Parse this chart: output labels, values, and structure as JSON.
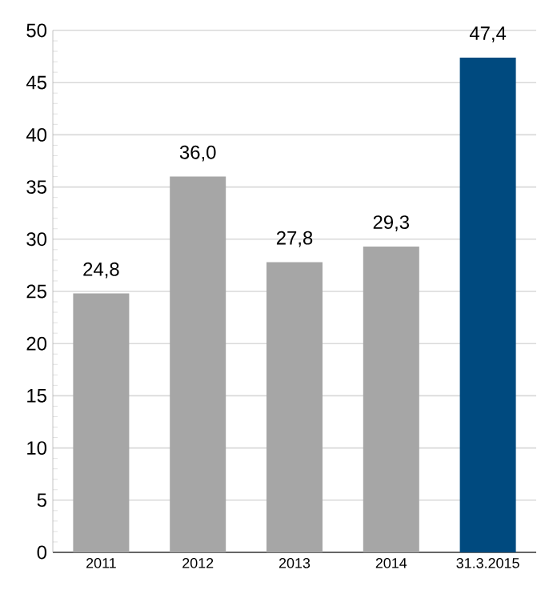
{
  "chart_data": {
    "type": "bar",
    "categories": [
      "2011",
      "2012",
      "2013",
      "2014",
      "31.3.2015"
    ],
    "values": [
      24.8,
      36.0,
      27.8,
      29.3,
      47.4
    ],
    "colors": [
      "#a6a6a6",
      "#a6a6a6",
      "#a6a6a6",
      "#a6a6a6",
      "#004a7f"
    ],
    "value_labels": [
      "24,8",
      "36,0",
      "27,8",
      "29,3",
      "47,4"
    ],
    "ylim": [
      0,
      50
    ],
    "yticks": [
      0,
      5,
      10,
      15,
      20,
      25,
      30,
      35,
      40,
      45,
      50
    ],
    "grid": "y"
  }
}
